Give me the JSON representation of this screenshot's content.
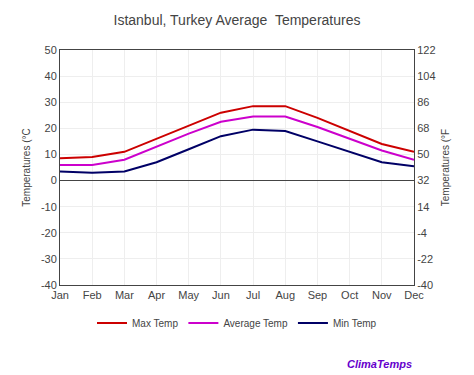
{
  "chart_data": {
    "type": "line",
    "title": "Istanbul, Turkey Average  Temperatures",
    "categories": [
      "Jan",
      "Feb",
      "Mar",
      "Apr",
      "May",
      "Jun",
      "Jul",
      "Aug",
      "Sep",
      "Oct",
      "Nov",
      "Dec"
    ],
    "series": [
      {
        "name": "Max Temp",
        "color": "#cc0000",
        "values": [
          8.5,
          9.0,
          11.0,
          16.0,
          21.0,
          26.0,
          28.5,
          28.5,
          24.0,
          19.0,
          14.0,
          11.0
        ]
      },
      {
        "name": "Average Temp",
        "color": "#cc00cc",
        "values": [
          6.0,
          6.0,
          8.0,
          13.0,
          18.0,
          22.5,
          24.5,
          24.5,
          20.5,
          16.0,
          11.5,
          8.0
        ]
      },
      {
        "name": "Min Temp",
        "color": "#000066",
        "values": [
          3.5,
          3.0,
          3.5,
          7.0,
          12.0,
          17.0,
          19.5,
          19.0,
          15.0,
          11.0,
          7.0,
          5.5
        ]
      }
    ],
    "ylabel": "Temperatures (°C",
    "y2label": "Temperatures (°F",
    "ylim": [
      -40,
      50
    ],
    "yticks": [
      -40,
      -30,
      -20,
      -10,
      0,
      10,
      20,
      30,
      40,
      50
    ],
    "y2lim": [
      -40.0,
      122.0
    ],
    "y2ticks": [
      -40.0,
      -22.0,
      -4.0,
      14.0,
      32.0,
      50.0,
      68.0,
      86.0,
      104.0,
      122.0
    ],
    "grid": true,
    "legend": "bottom",
    "annotations": [
      {
        "text": "ClimaTemps",
        "color": "#6600cc"
      }
    ]
  }
}
